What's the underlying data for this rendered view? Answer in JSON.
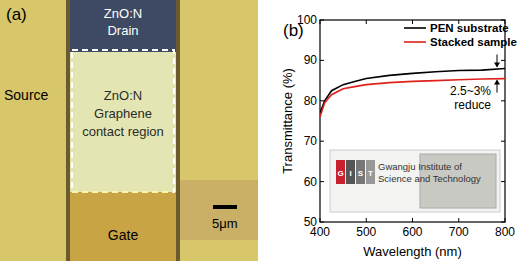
{
  "panel_a": {
    "label": "(a)",
    "drain": [
      "ZnO:N",
      "Drain"
    ],
    "source": "Source",
    "channel": [
      "ZnO:N",
      "Graphene",
      "contact region"
    ],
    "gate": "Gate",
    "scale_bar": "5μm"
  },
  "chart_data": {
    "type": "line",
    "panel_label": "(b)",
    "x_label": "Wavelength (nm)",
    "y_label": "Transmittance (%)",
    "xlim": [
      400,
      800
    ],
    "xticks": [
      400,
      500,
      600,
      700,
      800
    ],
    "ylim": [
      50,
      100
    ],
    "yticks": [
      50,
      60,
      70,
      80,
      90,
      100
    ],
    "legend": "upper right",
    "grid": false,
    "x": [
      400,
      410,
      425,
      450,
      475,
      500,
      550,
      600,
      650,
      700,
      750,
      800
    ],
    "series": [
      {
        "name": "PEN substrate",
        "color": "#000000",
        "values": [
          77,
          80,
          82.5,
          84,
          84.8,
          85.5,
          86.3,
          86.8,
          87.2,
          87.5,
          87.6,
          88
        ]
      },
      {
        "name": "Stacked sample",
        "color": "#e0201b",
        "values": [
          76,
          79.5,
          81.5,
          83,
          83.5,
          84,
          84.5,
          84.8,
          85,
          85.2,
          85.4,
          85.5
        ]
      }
    ],
    "annotation": [
      "2.5~3%",
      "reduce"
    ],
    "inset": {
      "logo": [
        "G",
        "I",
        "S",
        "T"
      ],
      "text": [
        "Gwangju Institute of",
        "Science and Technology"
      ]
    }
  }
}
